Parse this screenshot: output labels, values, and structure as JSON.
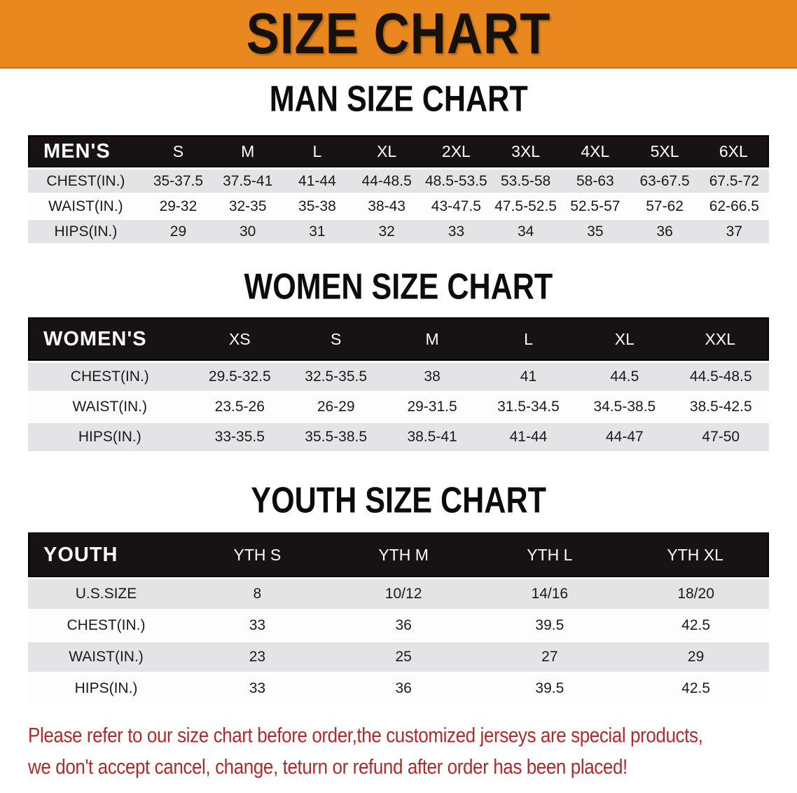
{
  "banner": {
    "title": "SIZE CHART",
    "bg_color": "#e8881e",
    "text_color": "#17110c"
  },
  "colors": {
    "header_bar": "#171314",
    "row_gray": "#e4e3e5",
    "row_white": "#fdfdfd",
    "footer_red": "#b02a2a"
  },
  "sections": [
    {
      "id": "men",
      "title": "MAN SIZE CHART",
      "table": {
        "header": [
          "MEN'S",
          "S",
          "M",
          "L",
          "XL",
          "2XL",
          "3XL",
          "4XL",
          "5XL",
          "6XL"
        ],
        "rows": [
          [
            "CHEST(IN.)",
            "35-37.5",
            "37.5-41",
            "41-44",
            "44-48.5",
            "48.5-53.5",
            "53.5-58",
            "58-63",
            "63-67.5",
            "67.5-72"
          ],
          [
            "WAIST(IN.)",
            "29-32",
            "32-35",
            "35-38",
            "38-43",
            "43-47.5",
            "47.5-52.5",
            "52.5-57",
            "57-62",
            "62-66.5"
          ],
          [
            "HIPS(IN.)",
            "29",
            "30",
            "31",
            "32",
            "33",
            "34",
            "35",
            "36",
            "37"
          ]
        ]
      }
    },
    {
      "id": "women",
      "title": "WOMEN SIZE CHART",
      "table": {
        "header": [
          "WOMEN'S",
          "XS",
          "S",
          "M",
          "L",
          "XL",
          "XXL"
        ],
        "rows": [
          [
            "CHEST(IN.)",
            "29.5-32.5",
            "32.5-35.5",
            "38",
            "41",
            "44.5",
            "44.5-48.5"
          ],
          [
            "WAIST(IN.)",
            "23.5-26",
            "26-29",
            "29-31.5",
            "31.5-34.5",
            "34.5-38.5",
            "38.5-42.5"
          ],
          [
            "HIPS(IN.)",
            "33-35.5",
            "35.5-38.5",
            "38.5-41",
            "41-44",
            "44-47",
            "47-50"
          ]
        ]
      }
    },
    {
      "id": "youth",
      "title": "YOUTH SIZE CHART",
      "table": {
        "header": [
          "YOUTH",
          "YTH S",
          "YTH M",
          "YTH L",
          "YTH XL"
        ],
        "rows": [
          [
            "U.S.SIZE",
            "8",
            "10/12",
            "14/16",
            "18/20"
          ],
          [
            "CHEST(IN.)",
            "33",
            "36",
            "39.5",
            "42.5"
          ],
          [
            "WAIST(IN.)",
            "23",
            "25",
            "27",
            "29"
          ],
          [
            "HIPS(IN.)",
            "33",
            "36",
            "39.5",
            "42.5"
          ]
        ]
      }
    }
  ],
  "footer": {
    "line1": "Please refer to our size chart before order,the customized jerseys are special products,",
    "line2": "we don't accept cancel, change, teturn or refund after order has been placed!"
  }
}
